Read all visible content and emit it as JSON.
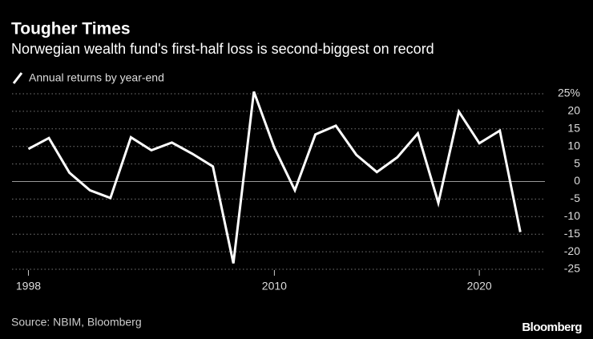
{
  "chart_data": {
    "type": "line",
    "title": "Tougher Times",
    "subtitle": "Norwegian wealth fund's first-half loss is second-biggest on record",
    "source": "Source: NBIM, Bloomberg",
    "brand": "Bloomberg",
    "x": [
      1998,
      1999,
      2000,
      2001,
      2002,
      2003,
      2004,
      2005,
      2006,
      2007,
      2008,
      2009,
      2010,
      2011,
      2012,
      2013,
      2014,
      2015,
      2016,
      2017,
      2018,
      2019,
      2020,
      2021,
      2022
    ],
    "series": [
      {
        "name": "Annual returns by year-end",
        "color": "#ffffff",
        "values": [
          9.3,
          12.4,
          2.5,
          -2.5,
          -4.7,
          12.6,
          8.9,
          11.1,
          7.9,
          4.3,
          -23.3,
          25.6,
          9.6,
          -2.5,
          13.4,
          15.9,
          7.6,
          2.7,
          6.9,
          13.7,
          -6.1,
          19.9,
          10.9,
          14.5,
          -14.4
        ]
      }
    ],
    "xlim": [
      1997.2,
      2023.2
    ],
    "xticks": [
      1998,
      2010,
      2020
    ],
    "ylim": [
      -25,
      25
    ],
    "yticks": [
      {
        "value": 25,
        "label": "25%"
      },
      20,
      15,
      10,
      5,
      0,
      -5,
      -10,
      -15,
      -20,
      -25
    ],
    "grid": true
  }
}
